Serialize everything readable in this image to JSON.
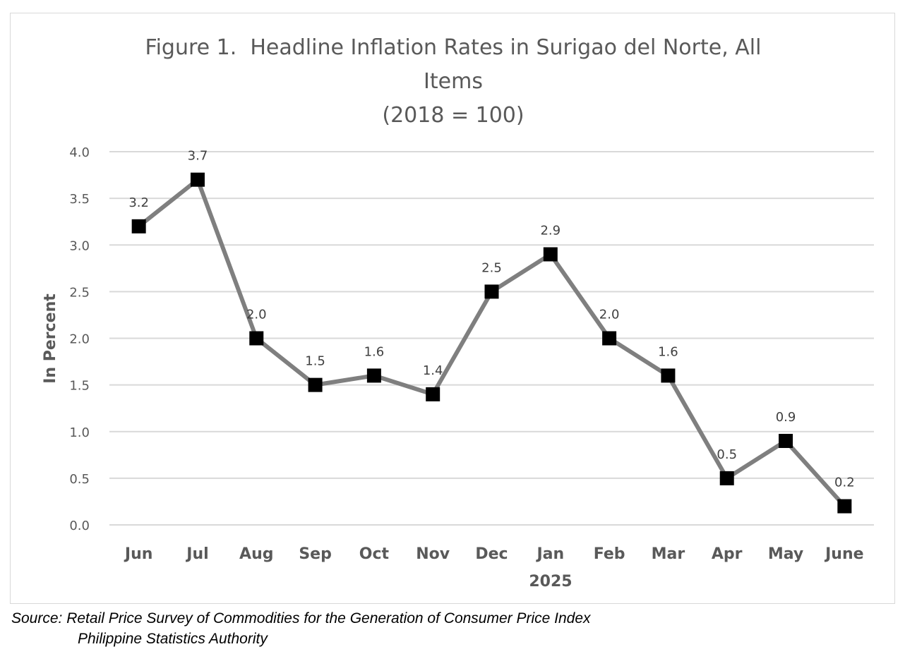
{
  "chart_data": {
    "type": "line",
    "title_lines": [
      "Figure 1.  Headline Inflation Rates in Surigao del Norte, All",
      "Items",
      "(2018 = 100)"
    ],
    "ylabel": "In Percent",
    "xlabel": "",
    "year_label": "2025",
    "categories": [
      "Jun",
      "Jul",
      "Aug",
      "Sep",
      "Oct",
      "Nov",
      "Dec",
      "Jan",
      "Feb",
      "Mar",
      "Apr",
      "May",
      "June"
    ],
    "values": [
      3.2,
      3.7,
      2.0,
      1.5,
      1.6,
      1.4,
      2.5,
      2.9,
      2.0,
      1.6,
      0.5,
      0.9,
      0.2
    ],
    "value_labels": [
      "3.2",
      "3.7",
      "2.0",
      "1.5",
      "1.6",
      "1.4",
      "2.5",
      "2.9",
      "2.0",
      "1.6",
      "0.5",
      "0.9",
      "0.2"
    ],
    "ylim": [
      0,
      4
    ],
    "yticks": [
      "0.0",
      "0.5",
      "1.0",
      "1.5",
      "2.0",
      "2.5",
      "3.0",
      "3.5",
      "4.0"
    ],
    "grid": true,
    "line_color": "#7f7f7f",
    "marker_color": "#000000",
    "grid_color": "#d9d9d9"
  },
  "source": {
    "line1": "Source: Retail Price Survey of Commodities for the Generation of Consumer Price Index",
    "line2": "Philippine Statistics Authority"
  }
}
